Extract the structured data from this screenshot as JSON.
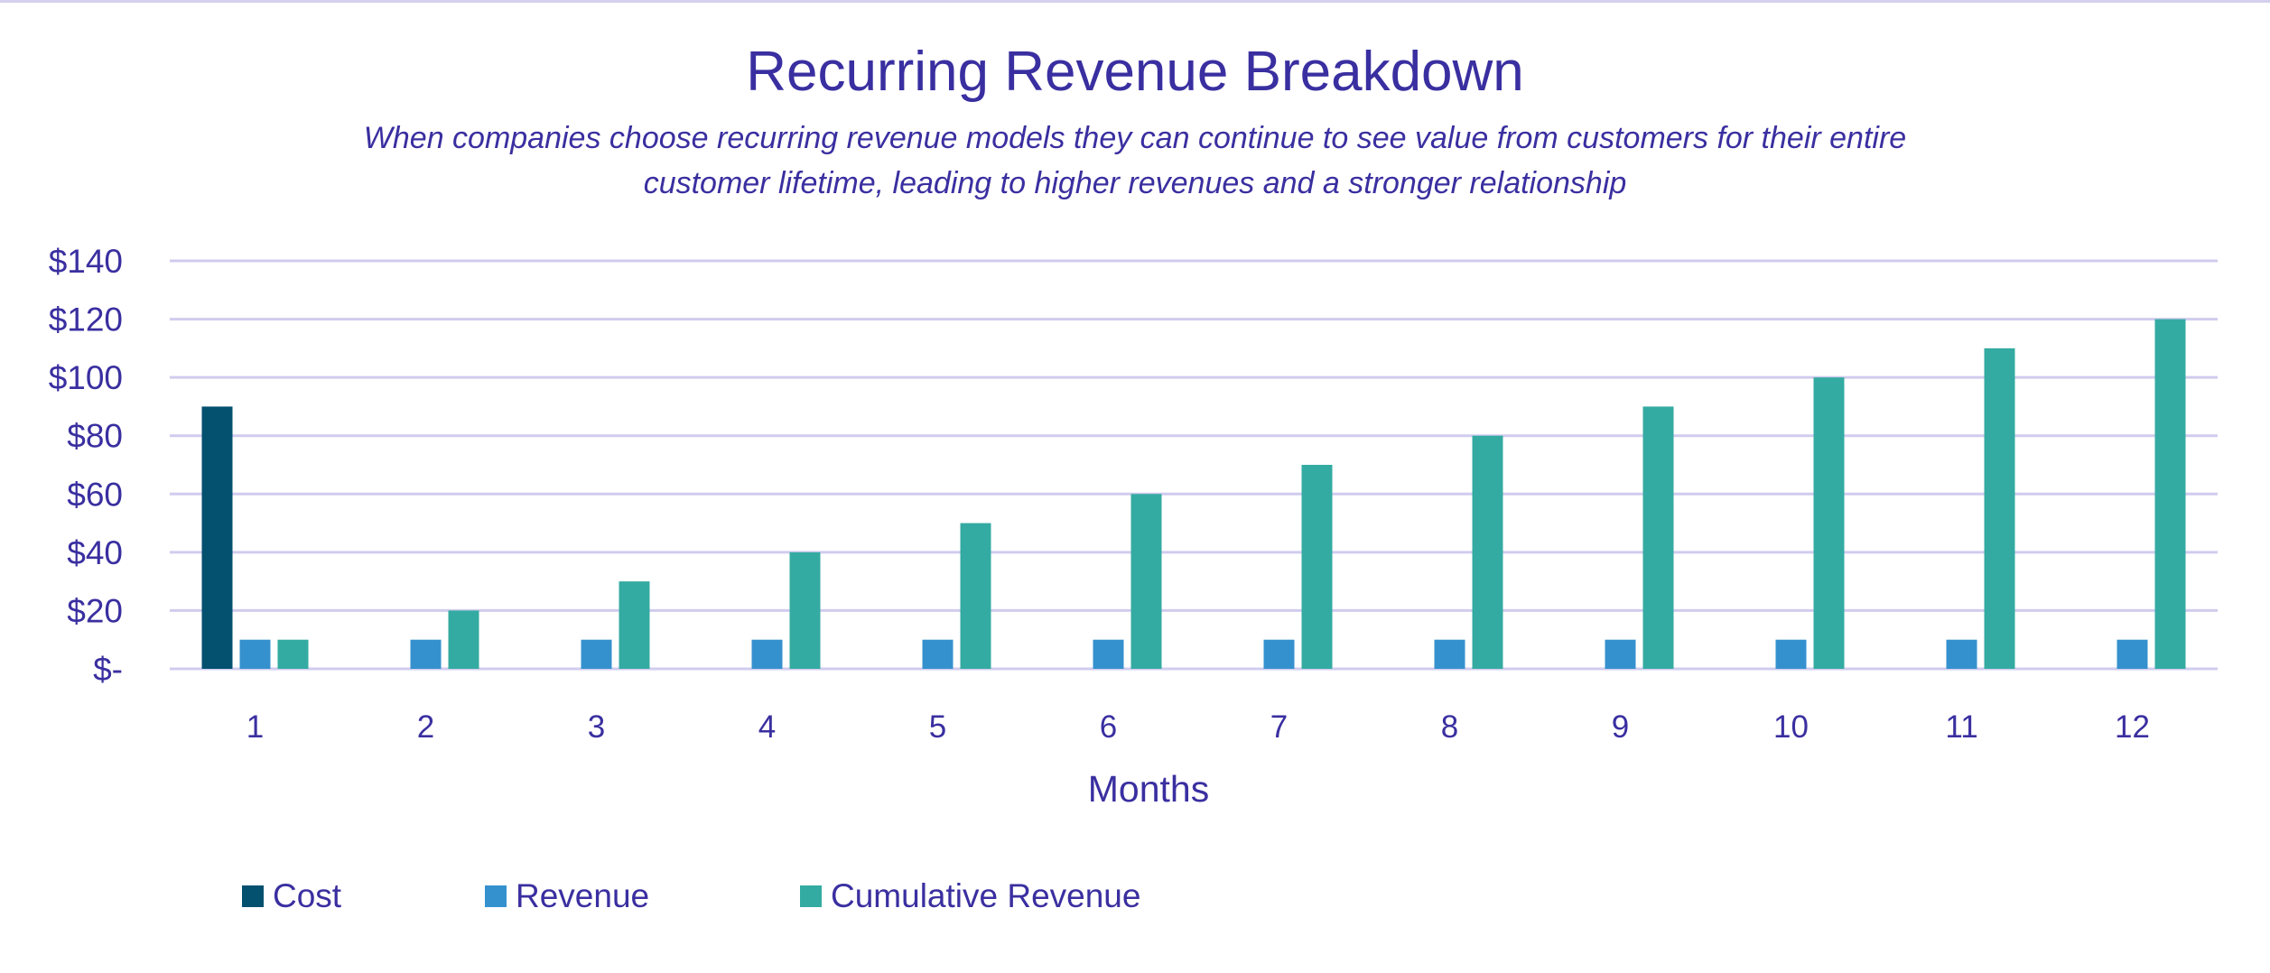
{
  "chart_data": {
    "type": "bar",
    "title": "Recurring Revenue Breakdown",
    "subtitle": [
      "When companies choose recurring revenue models they can continue to see value from customers for their entire",
      "customer lifetime, leading to higher revenues and a stronger relationship"
    ],
    "xlabel": "Months",
    "ylabel": "",
    "categories": [
      "1",
      "2",
      "3",
      "4",
      "5",
      "6",
      "7",
      "8",
      "9",
      "10",
      "11",
      "12"
    ],
    "ylim": [
      0,
      140
    ],
    "yticks": [
      0,
      20,
      40,
      60,
      80,
      100,
      120,
      140
    ],
    "ytick_labels": [
      "$-",
      "$20",
      "$40",
      "$60",
      "$80",
      "$100",
      "$120",
      "$140"
    ],
    "grid": true,
    "legend_position": "bottom",
    "series": [
      {
        "name": "Cost",
        "color": "#03506f",
        "values": [
          90,
          0,
          0,
          0,
          0,
          0,
          0,
          0,
          0,
          0,
          0,
          0
        ]
      },
      {
        "name": "Revenue",
        "color": "#3591ce",
        "values": [
          10,
          10,
          10,
          10,
          10,
          10,
          10,
          10,
          10,
          10,
          10,
          10
        ]
      },
      {
        "name": "Cumulative Revenue",
        "color": "#34aba2",
        "values": [
          10,
          20,
          30,
          40,
          50,
          60,
          70,
          80,
          90,
          100,
          110,
          120
        ]
      }
    ]
  }
}
